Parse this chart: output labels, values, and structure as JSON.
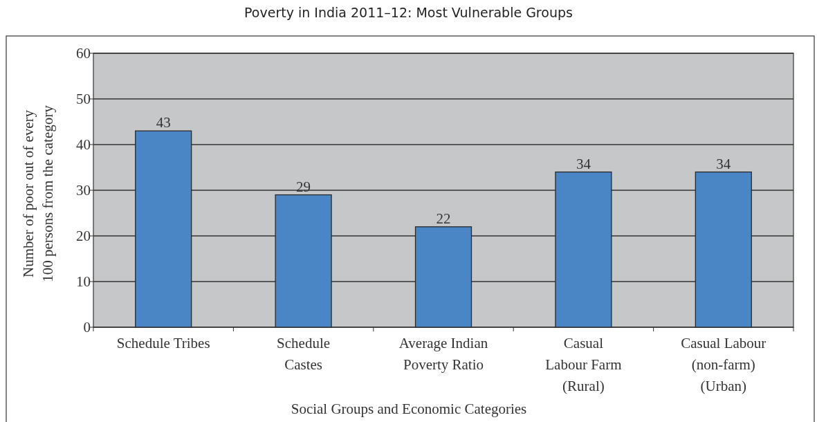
{
  "chart_data": {
    "type": "bar",
    "title": "Poverty in India 2011–12: Most Vulnerable Groups",
    "xlabel": "Social Groups and Economic Categories",
    "ylabel": "Number of poor out of every\n100 persons  from the category",
    "categories": [
      "Schedule Tribes",
      "Schedule\nCastes",
      "Average Indian\nPoverty Ratio",
      "Casual\nLabour Farm\n(Rural)",
      "Casual Labour\n(non-farm)\n(Urban)"
    ],
    "values": [
      43,
      29,
      22,
      34,
      34
    ],
    "color": "#4a86c5",
    "ylim": [
      0,
      60
    ],
    "yticks": [
      0,
      10,
      20,
      30,
      40,
      50,
      60
    ],
    "grid": "y",
    "data_labels": true
  }
}
